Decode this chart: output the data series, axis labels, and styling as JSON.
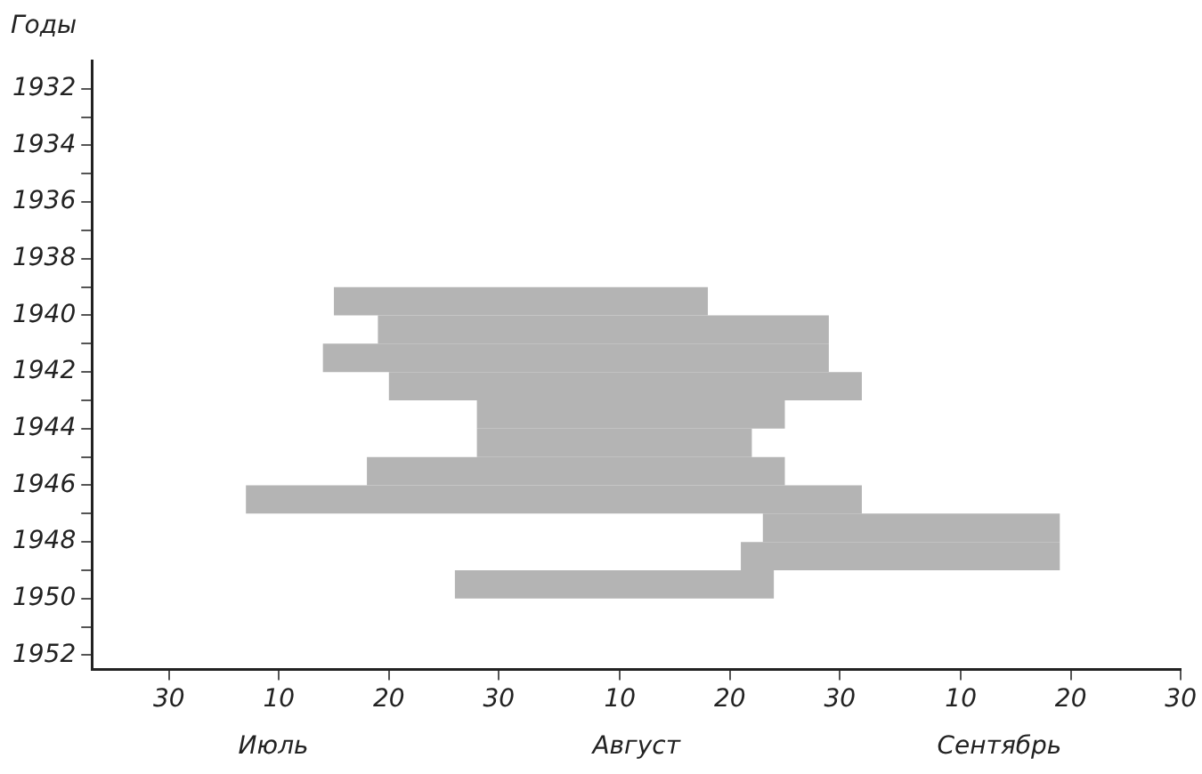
{
  "chart_data": {
    "type": "line",
    "ylabel": "Годы",
    "series": [
      {
        "color": "#b4b4b4",
        "x": [
          "--07-15",
          "--08-18"
        ],
        "values": [
          1939.5,
          1939.5
        ]
      },
      {
        "color": "#b4b4b4",
        "x": [
          "--07-19",
          "--08-29"
        ],
        "values": [
          1940.5,
          1940.5
        ]
      },
      {
        "color": "#b4b4b4",
        "x": [
          "--07-14",
          "--08-29"
        ],
        "values": [
          1941.5,
          1941.5
        ]
      },
      {
        "color": "#b4b4b4",
        "x": [
          "--07-20",
          "--09-01"
        ],
        "values": [
          1942.5,
          1942.5
        ]
      },
      {
        "color": "#b4b4b4",
        "x": [
          "--07-28",
          "--08-25"
        ],
        "values": [
          1943.5,
          1943.5
        ]
      },
      {
        "color": "#b4b4b4",
        "x": [
          "--07-28",
          "--08-22"
        ],
        "values": [
          1944.5,
          1944.5
        ]
      },
      {
        "color": "#b4b4b4",
        "x": [
          "--07-18",
          "--08-25"
        ],
        "values": [
          1945.5,
          1945.5
        ]
      },
      {
        "color": "#b4b4b4",
        "x": [
          "--07-07",
          "--09-01"
        ],
        "values": [
          1946.5,
          1946.5
        ]
      },
      {
        "color": "#b4b4b4",
        "x": [
          "--08-23",
          "--09-19"
        ],
        "values": [
          1947.5,
          1947.5
        ]
      },
      {
        "color": "#b4b4b4",
        "x": [
          "--08-21",
          "--09-19"
        ],
        "values": [
          1948.5,
          1948.5
        ]
      },
      {
        "color": "#b4b4b4",
        "x": [
          "--07-26",
          "--08-24"
        ],
        "values": [
          1949.5,
          1949.5
        ]
      }
    ],
    "xlim": [
      "--06-23",
      "--09-30"
    ],
    "xticks": [
      {
        "value": "--06-30",
        "label": "30"
      },
      {
        "value": "--07-10",
        "label": "10"
      },
      {
        "value": "--07-20",
        "label": "20"
      },
      {
        "value": "--07-30",
        "label": "30"
      },
      {
        "value": "--08-10",
        "label": "10"
      },
      {
        "value": "--08-20",
        "label": "20"
      },
      {
        "value": "--08-30",
        "label": "30"
      },
      {
        "value": "--09-10",
        "label": "10"
      },
      {
        "value": "--09-20",
        "label": "20"
      },
      {
        "value": "--09-30",
        "label": "30"
      }
    ],
    "annotations": [
      "Июль",
      "Август",
      "Сентябрь"
    ],
    "ylim": [
      1952.5,
      1931
    ],
    "yticks": [
      1932,
      {
        "value": 1933,
        "label": null
      },
      1934,
      {
        "value": 1935,
        "label": null
      },
      1936,
      {
        "value": 1937,
        "label": null
      },
      1938,
      {
        "value": 1939,
        "label": null
      },
      1940,
      {
        "value": 1941,
        "label": null
      },
      1942,
      {
        "value": 1943,
        "label": null
      },
      1944,
      {
        "value": 1945,
        "label": null
      },
      1946,
      {
        "value": 1947,
        "label": null
      },
      1948,
      {
        "value": 1949,
        "label": null
      },
      1950,
      {
        "value": 1951,
        "label": null
      },
      1952
    ],
    "grid": false,
    "legend": false,
    "marker": "none",
    "line_style": "solid"
  }
}
